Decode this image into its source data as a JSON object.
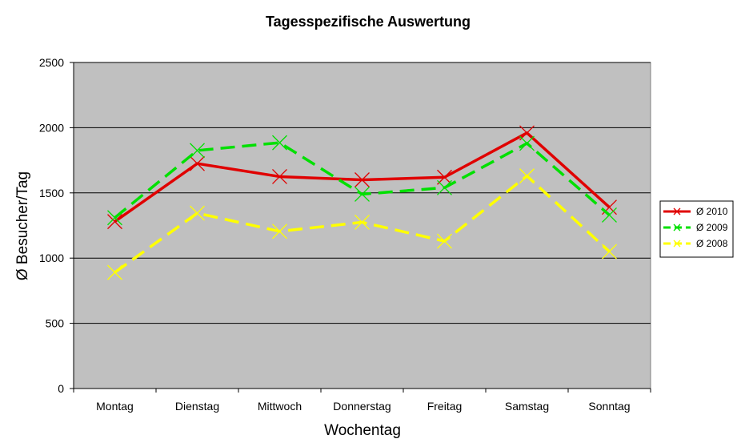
{
  "chart_data": {
    "type": "line",
    "title": "Tagesspezifische Auswertung",
    "xlabel": "Wochentag",
    "ylabel": "Ø Besucher/Tag",
    "categories": [
      "Montag",
      "Dienstag",
      "Mittwoch",
      "Donnerstag",
      "Freitag",
      "Samstag",
      "Sonntag"
    ],
    "ylim": [
      0,
      2500
    ],
    "yticks": [
      0,
      500,
      1000,
      1500,
      2000,
      2500
    ],
    "grid": true,
    "legend_position": "right",
    "plot_background": "#c0c0c0",
    "series": [
      {
        "name": "Ø 2010",
        "values": [
          1280,
          1725,
          1625,
          1600,
          1620,
          1960,
          1390
        ],
        "color": "#e00000",
        "dash": "solid",
        "marker": "x"
      },
      {
        "name": "Ø 2009",
        "values": [
          1310,
          1825,
          1885,
          1490,
          1540,
          1880,
          1330
        ],
        "color": "#00e000",
        "dash": "dashed",
        "marker": "x"
      },
      {
        "name": "Ø 2008",
        "values": [
          890,
          1345,
          1205,
          1275,
          1130,
          1630,
          1050
        ],
        "color": "#ffff00",
        "dash": "dashed",
        "marker": "x"
      }
    ]
  }
}
